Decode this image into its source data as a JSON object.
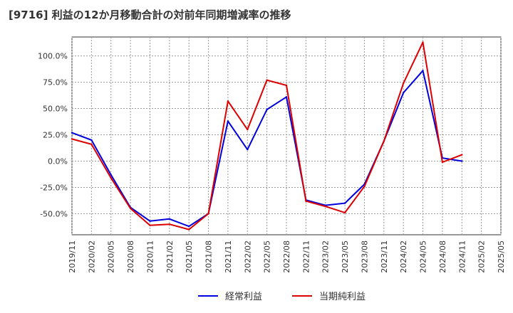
{
  "chart_data": {
    "type": "line",
    "title": "[9716]  利益の12か月移動合計の対前年同期増減率の推移",
    "x": [
      "2019/11",
      "2020/02",
      "2020/05",
      "2020/08",
      "2020/11",
      "2021/02",
      "2021/05",
      "2021/08",
      "2021/11",
      "2022/02",
      "2022/05",
      "2022/08",
      "2022/11",
      "2023/02",
      "2023/05",
      "2023/08",
      "2023/11",
      "2024/02",
      "2024/05",
      "2024/08",
      "2024/11"
    ],
    "x_tick_labels": [
      "2019/11",
      "2020/02",
      "2020/05",
      "2020/08",
      "2020/11",
      "2021/02",
      "2021/05",
      "2021/08",
      "2021/11",
      "2022/02",
      "2022/05",
      "2022/08",
      "2022/11",
      "2023/02",
      "2023/05",
      "2023/08",
      "2023/11",
      "2024/02",
      "2024/05",
      "2024/08",
      "2024/11",
      "2025/02",
      "2025/05"
    ],
    "y_tick_values": [
      100,
      75,
      50,
      25,
      0,
      -25,
      -50
    ],
    "y_tick_labels": [
      "100.0%",
      "75.0%",
      "50.0%",
      "25.0%",
      "0.0%",
      "-25.0%",
      "-50.0%"
    ],
    "ylim": [
      -70,
      118
    ],
    "xlabel": "",
    "ylabel": "",
    "grid": true,
    "legend_position": "bottom-center",
    "series": [
      {
        "name": "経常利益",
        "color": "#0000dd",
        "values": [
          27,
          20,
          -13,
          -44,
          -57,
          -55,
          -62,
          -50,
          38,
          11,
          49,
          61,
          -37,
          -42,
          -40,
          -22,
          19,
          65,
          86,
          3,
          0
        ]
      },
      {
        "name": "当期純利益",
        "color": "#dd0000",
        "values": [
          21,
          16,
          -16,
          -45,
          -61,
          -60,
          -65,
          -50,
          57,
          30,
          77,
          72,
          -38,
          -43,
          -49,
          -24,
          19,
          74,
          113,
          -1,
          6
        ]
      }
    ]
  }
}
